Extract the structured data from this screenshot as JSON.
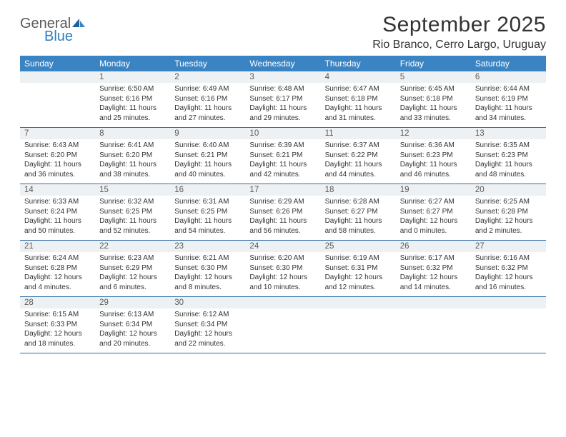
{
  "logo": {
    "general": "General",
    "blue": "Blue"
  },
  "title": "September 2025",
  "location": "Rio Branco, Cerro Largo, Uruguay",
  "colors": {
    "header_bg": "#3b84c4",
    "daynum_bg": "#eef1f3",
    "border": "#2e6ca3",
    "text": "#333333",
    "logo_gray": "#5a5a5a",
    "logo_blue": "#2f7bbf"
  },
  "weekdays": [
    "Sunday",
    "Monday",
    "Tuesday",
    "Wednesday",
    "Thursday",
    "Friday",
    "Saturday"
  ],
  "weeks": [
    [
      {
        "n": "",
        "sr": "",
        "ss": "",
        "dl": ""
      },
      {
        "n": "1",
        "sr": "Sunrise: 6:50 AM",
        "ss": "Sunset: 6:16 PM",
        "dl": "Daylight: 11 hours and 25 minutes."
      },
      {
        "n": "2",
        "sr": "Sunrise: 6:49 AM",
        "ss": "Sunset: 6:16 PM",
        "dl": "Daylight: 11 hours and 27 minutes."
      },
      {
        "n": "3",
        "sr": "Sunrise: 6:48 AM",
        "ss": "Sunset: 6:17 PM",
        "dl": "Daylight: 11 hours and 29 minutes."
      },
      {
        "n": "4",
        "sr": "Sunrise: 6:47 AM",
        "ss": "Sunset: 6:18 PM",
        "dl": "Daylight: 11 hours and 31 minutes."
      },
      {
        "n": "5",
        "sr": "Sunrise: 6:45 AM",
        "ss": "Sunset: 6:18 PM",
        "dl": "Daylight: 11 hours and 33 minutes."
      },
      {
        "n": "6",
        "sr": "Sunrise: 6:44 AM",
        "ss": "Sunset: 6:19 PM",
        "dl": "Daylight: 11 hours and 34 minutes."
      }
    ],
    [
      {
        "n": "7",
        "sr": "Sunrise: 6:43 AM",
        "ss": "Sunset: 6:20 PM",
        "dl": "Daylight: 11 hours and 36 minutes."
      },
      {
        "n": "8",
        "sr": "Sunrise: 6:41 AM",
        "ss": "Sunset: 6:20 PM",
        "dl": "Daylight: 11 hours and 38 minutes."
      },
      {
        "n": "9",
        "sr": "Sunrise: 6:40 AM",
        "ss": "Sunset: 6:21 PM",
        "dl": "Daylight: 11 hours and 40 minutes."
      },
      {
        "n": "10",
        "sr": "Sunrise: 6:39 AM",
        "ss": "Sunset: 6:21 PM",
        "dl": "Daylight: 11 hours and 42 minutes."
      },
      {
        "n": "11",
        "sr": "Sunrise: 6:37 AM",
        "ss": "Sunset: 6:22 PM",
        "dl": "Daylight: 11 hours and 44 minutes."
      },
      {
        "n": "12",
        "sr": "Sunrise: 6:36 AM",
        "ss": "Sunset: 6:23 PM",
        "dl": "Daylight: 11 hours and 46 minutes."
      },
      {
        "n": "13",
        "sr": "Sunrise: 6:35 AM",
        "ss": "Sunset: 6:23 PM",
        "dl": "Daylight: 11 hours and 48 minutes."
      }
    ],
    [
      {
        "n": "14",
        "sr": "Sunrise: 6:33 AM",
        "ss": "Sunset: 6:24 PM",
        "dl": "Daylight: 11 hours and 50 minutes."
      },
      {
        "n": "15",
        "sr": "Sunrise: 6:32 AM",
        "ss": "Sunset: 6:25 PM",
        "dl": "Daylight: 11 hours and 52 minutes."
      },
      {
        "n": "16",
        "sr": "Sunrise: 6:31 AM",
        "ss": "Sunset: 6:25 PM",
        "dl": "Daylight: 11 hours and 54 minutes."
      },
      {
        "n": "17",
        "sr": "Sunrise: 6:29 AM",
        "ss": "Sunset: 6:26 PM",
        "dl": "Daylight: 11 hours and 56 minutes."
      },
      {
        "n": "18",
        "sr": "Sunrise: 6:28 AM",
        "ss": "Sunset: 6:27 PM",
        "dl": "Daylight: 11 hours and 58 minutes."
      },
      {
        "n": "19",
        "sr": "Sunrise: 6:27 AM",
        "ss": "Sunset: 6:27 PM",
        "dl": "Daylight: 12 hours and 0 minutes."
      },
      {
        "n": "20",
        "sr": "Sunrise: 6:25 AM",
        "ss": "Sunset: 6:28 PM",
        "dl": "Daylight: 12 hours and 2 minutes."
      }
    ],
    [
      {
        "n": "21",
        "sr": "Sunrise: 6:24 AM",
        "ss": "Sunset: 6:28 PM",
        "dl": "Daylight: 12 hours and 4 minutes."
      },
      {
        "n": "22",
        "sr": "Sunrise: 6:23 AM",
        "ss": "Sunset: 6:29 PM",
        "dl": "Daylight: 12 hours and 6 minutes."
      },
      {
        "n": "23",
        "sr": "Sunrise: 6:21 AM",
        "ss": "Sunset: 6:30 PM",
        "dl": "Daylight: 12 hours and 8 minutes."
      },
      {
        "n": "24",
        "sr": "Sunrise: 6:20 AM",
        "ss": "Sunset: 6:30 PM",
        "dl": "Daylight: 12 hours and 10 minutes."
      },
      {
        "n": "25",
        "sr": "Sunrise: 6:19 AM",
        "ss": "Sunset: 6:31 PM",
        "dl": "Daylight: 12 hours and 12 minutes."
      },
      {
        "n": "26",
        "sr": "Sunrise: 6:17 AM",
        "ss": "Sunset: 6:32 PM",
        "dl": "Daylight: 12 hours and 14 minutes."
      },
      {
        "n": "27",
        "sr": "Sunrise: 6:16 AM",
        "ss": "Sunset: 6:32 PM",
        "dl": "Daylight: 12 hours and 16 minutes."
      }
    ],
    [
      {
        "n": "28",
        "sr": "Sunrise: 6:15 AM",
        "ss": "Sunset: 6:33 PM",
        "dl": "Daylight: 12 hours and 18 minutes."
      },
      {
        "n": "29",
        "sr": "Sunrise: 6:13 AM",
        "ss": "Sunset: 6:34 PM",
        "dl": "Daylight: 12 hours and 20 minutes."
      },
      {
        "n": "30",
        "sr": "Sunrise: 6:12 AM",
        "ss": "Sunset: 6:34 PM",
        "dl": "Daylight: 12 hours and 22 minutes."
      },
      {
        "n": "",
        "sr": "",
        "ss": "",
        "dl": ""
      },
      {
        "n": "",
        "sr": "",
        "ss": "",
        "dl": ""
      },
      {
        "n": "",
        "sr": "",
        "ss": "",
        "dl": ""
      },
      {
        "n": "",
        "sr": "",
        "ss": "",
        "dl": ""
      }
    ]
  ]
}
